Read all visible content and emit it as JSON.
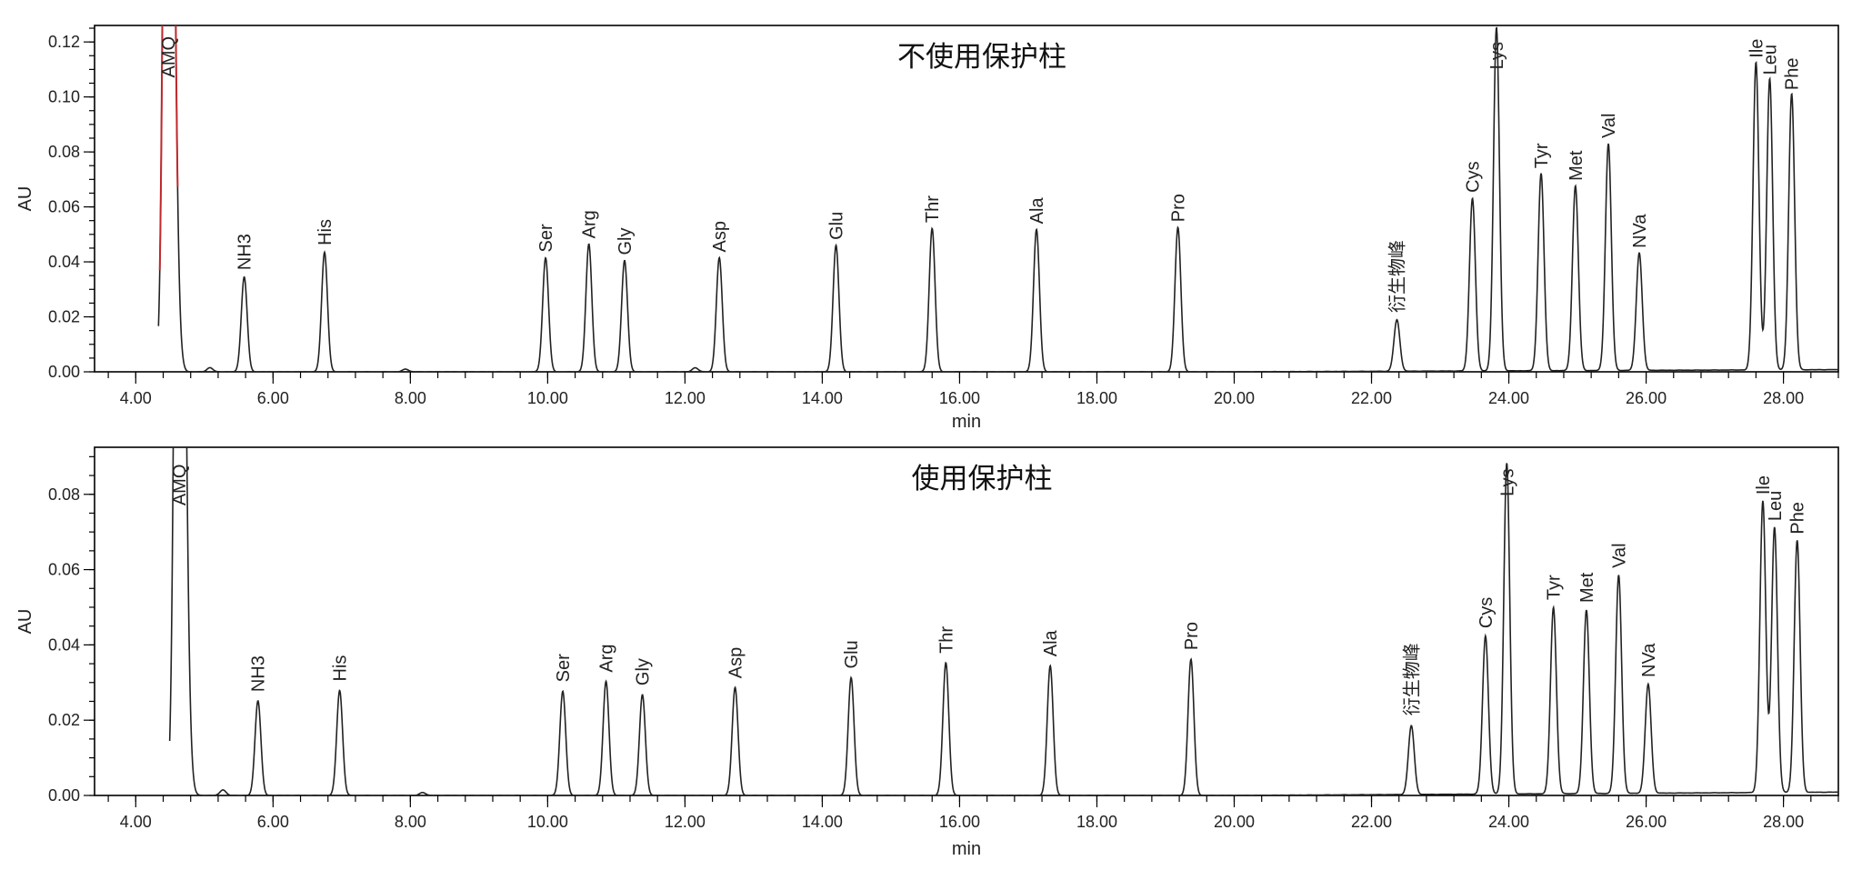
{
  "chart_data": [
    {
      "type": "line",
      "title": "不使用保护柱",
      "xlabel": "min",
      "ylabel": "AU",
      "xlim": [
        3.4,
        28.8
      ],
      "ylim": [
        0,
        0.126
      ],
      "x_ticks": [
        {
          "value": 4.0,
          "label": "4.00"
        },
        {
          "value": 6.0,
          "label": "6.00"
        },
        {
          "value": 8.0,
          "label": "8.00"
        },
        {
          "value": 10.0,
          "label": "10.00"
        },
        {
          "value": 12.0,
          "label": "12.00"
        },
        {
          "value": 14.0,
          "label": "14.00"
        },
        {
          "value": 16.0,
          "label": "16.00"
        },
        {
          "value": 18.0,
          "label": "18.00"
        },
        {
          "value": 20.0,
          "label": "20.00"
        },
        {
          "value": 22.0,
          "label": "22.00"
        },
        {
          "value": 24.0,
          "label": "24.00"
        },
        {
          "value": 26.0,
          "label": "26.00"
        },
        {
          "value": 28.0,
          "label": "28.00"
        }
      ],
      "y_ticks": [
        {
          "value": 0.0,
          "label": "0.00"
        },
        {
          "value": 0.02,
          "label": "0.02"
        },
        {
          "value": 0.04,
          "label": "0.04"
        },
        {
          "value": 0.06,
          "label": "0.06"
        },
        {
          "value": 0.08,
          "label": "0.08"
        },
        {
          "value": 0.1,
          "label": "0.10"
        },
        {
          "value": 0.12,
          "label": "0.12"
        }
      ],
      "highlight_color": "#c0282d",
      "line_color": "#222222",
      "peaks": [
        {
          "label": "AMQ",
          "x": 4.47,
          "y": 0.4,
          "label_y": 0.107,
          "highlight": true
        },
        {
          "label": "",
          "x": 5.08,
          "y": 0.0015
        },
        {
          "label": "NH3",
          "x": 5.58,
          "y": 0.0345,
          "label_y": 0.037
        },
        {
          "label": "His",
          "x": 6.75,
          "y": 0.0435,
          "label_y": 0.046
        },
        {
          "label": "",
          "x": 7.93,
          "y": 0.001
        },
        {
          "label": "Ser",
          "x": 9.97,
          "y": 0.0415,
          "label_y": 0.0435
        },
        {
          "label": "Arg",
          "x": 10.6,
          "y": 0.0465,
          "label_y": 0.0485
        },
        {
          "label": "Gly",
          "x": 11.12,
          "y": 0.0405,
          "label_y": 0.0425
        },
        {
          "label": "",
          "x": 12.15,
          "y": 0.0015
        },
        {
          "label": "Asp",
          "x": 12.5,
          "y": 0.0415,
          "label_y": 0.0435
        },
        {
          "label": "Glu",
          "x": 14.2,
          "y": 0.046,
          "label_y": 0.048
        },
        {
          "label": "Thr",
          "x": 15.6,
          "y": 0.0522,
          "label_y": 0.0542
        },
        {
          "label": "Ala",
          "x": 17.12,
          "y": 0.0518,
          "label_y": 0.0538
        },
        {
          "label": "Pro",
          "x": 19.18,
          "y": 0.0525,
          "label_y": 0.0545
        },
        {
          "label": "衍生物峰",
          "x": 22.37,
          "y": 0.0187,
          "label_y": 0.0215
        },
        {
          "label": "Cys",
          "x": 23.47,
          "y": 0.0628,
          "label_y": 0.0652
        },
        {
          "label": "Lys",
          "x": 23.82,
          "y": 0.125,
          "label_y": 0.11
        },
        {
          "label": "Tyr",
          "x": 24.47,
          "y": 0.0718,
          "label_y": 0.074
        },
        {
          "label": "Met",
          "x": 24.97,
          "y": 0.0672,
          "label_y": 0.0695
        },
        {
          "label": "Val",
          "x": 25.45,
          "y": 0.0825,
          "label_y": 0.085
        },
        {
          "label": "NVa",
          "x": 25.9,
          "y": 0.0428,
          "label_y": 0.045
        },
        {
          "label": "Ile",
          "x": 27.6,
          "y": 0.112,
          "label_y": 0.1142
        },
        {
          "label": "Leu",
          "x": 27.8,
          "y": 0.106,
          "label_y": 0.108
        },
        {
          "label": "Phe",
          "x": 28.12,
          "y": 0.1005,
          "label_y": 0.1025
        }
      ]
    },
    {
      "type": "line",
      "title": "使用保护柱",
      "xlabel": "min",
      "ylabel": "AU",
      "xlim": [
        3.4,
        28.8
      ],
      "ylim": [
        0,
        0.0925
      ],
      "x_ticks": [
        {
          "value": 4.0,
          "label": "4.00"
        },
        {
          "value": 6.0,
          "label": "6.00"
        },
        {
          "value": 8.0,
          "label": "8.00"
        },
        {
          "value": 10.0,
          "label": "10.00"
        },
        {
          "value": 12.0,
          "label": "12.00"
        },
        {
          "value": 14.0,
          "label": "14.00"
        },
        {
          "value": 16.0,
          "label": "16.00"
        },
        {
          "value": 18.0,
          "label": "18.00"
        },
        {
          "value": 20.0,
          "label": "20.00"
        },
        {
          "value": 22.0,
          "label": "22.00"
        },
        {
          "value": 24.0,
          "label": "24.00"
        },
        {
          "value": 26.0,
          "label": "26.00"
        },
        {
          "value": 28.0,
          "label": "28.00"
        }
      ],
      "y_ticks": [
        {
          "value": 0.0,
          "label": "0.00"
        },
        {
          "value": 0.02,
          "label": "0.02"
        },
        {
          "value": 0.04,
          "label": "0.04"
        },
        {
          "value": 0.06,
          "label": "0.06"
        },
        {
          "value": 0.08,
          "label": "0.08"
        }
      ],
      "line_color": "#222222",
      "peaks": [
        {
          "label": "AMQ",
          "x": 4.63,
          "y": 0.3,
          "label_y": 0.077
        },
        {
          "label": "",
          "x": 5.27,
          "y": 0.0015
        },
        {
          "label": "NH3",
          "x": 5.78,
          "y": 0.0252,
          "label_y": 0.0275
        },
        {
          "label": "His",
          "x": 6.97,
          "y": 0.0279,
          "label_y": 0.0303
        },
        {
          "label": "",
          "x": 8.18,
          "y": 0.0008
        },
        {
          "label": "Ser",
          "x": 10.22,
          "y": 0.0277,
          "label_y": 0.0301
        },
        {
          "label": "Arg",
          "x": 10.85,
          "y": 0.0303,
          "label_y": 0.0327
        },
        {
          "label": "Gly",
          "x": 11.38,
          "y": 0.0268,
          "label_y": 0.0292
        },
        {
          "label": "Asp",
          "x": 12.73,
          "y": 0.0287,
          "label_y": 0.0311
        },
        {
          "label": "Glu",
          "x": 14.42,
          "y": 0.0313,
          "label_y": 0.0337
        },
        {
          "label": "Thr",
          "x": 15.8,
          "y": 0.0353,
          "label_y": 0.0377
        },
        {
          "label": "Ala",
          "x": 17.32,
          "y": 0.0345,
          "label_y": 0.0369
        },
        {
          "label": "Pro",
          "x": 19.37,
          "y": 0.0362,
          "label_y": 0.0386
        },
        {
          "label": "衍生物峰",
          "x": 22.58,
          "y": 0.0183,
          "label_y": 0.0212
        },
        {
          "label": "Cys",
          "x": 23.66,
          "y": 0.042,
          "label_y": 0.0444
        },
        {
          "label": "Lys",
          "x": 23.97,
          "y": 0.088,
          "label_y": 0.0795
        },
        {
          "label": "Tyr",
          "x": 24.65,
          "y": 0.0495,
          "label_y": 0.0519
        },
        {
          "label": "Met",
          "x": 25.13,
          "y": 0.0488,
          "label_y": 0.0512
        },
        {
          "label": "Val",
          "x": 25.6,
          "y": 0.058,
          "label_y": 0.0604
        },
        {
          "label": "NVa",
          "x": 26.03,
          "y": 0.029,
          "label_y": 0.0314
        },
        {
          "label": "Ile",
          "x": 27.7,
          "y": 0.0775,
          "label_y": 0.0799
        },
        {
          "label": "Leu",
          "x": 27.87,
          "y": 0.0705,
          "label_y": 0.0729
        },
        {
          "label": "Phe",
          "x": 28.2,
          "y": 0.067,
          "label_y": 0.0694
        }
      ]
    }
  ]
}
